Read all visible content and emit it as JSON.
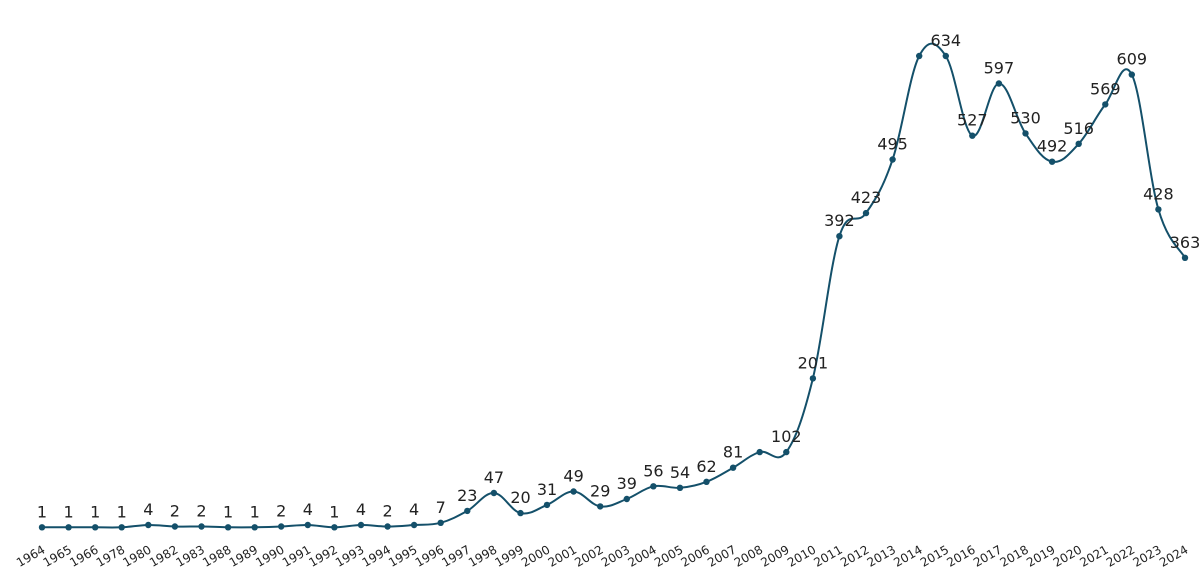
{
  "chart_data": {
    "type": "line",
    "categories": [
      "1964",
      "1965",
      "1966",
      "1978",
      "1980",
      "1982",
      "1983",
      "1988",
      "1989",
      "1990",
      "1991",
      "1992",
      "1993",
      "1994",
      "1995",
      "1996",
      "1997",
      "1998",
      "1999",
      "2000",
      "2001",
      "2002",
      "2003",
      "2004",
      "2005",
      "2006",
      "2007",
      "2008",
      "2009",
      "2010",
      "2011",
      "2012",
      "2013",
      "2014",
      "2015",
      "2016",
      "2017",
      "2018",
      "2019",
      "2020",
      "2021",
      "2022",
      "2023",
      "2024"
    ],
    "series": [
      {
        "values": [
          1,
          1,
          1,
          1,
          4,
          2,
          2,
          1,
          1,
          2,
          4,
          1,
          4,
          2,
          4,
          7,
          23,
          47,
          20,
          31,
          49,
          29,
          39,
          56,
          54,
          62,
          81,
          102,
          102,
          201,
          392,
          423,
          495,
          634,
          634,
          527,
          597,
          530,
          492,
          516,
          569,
          609,
          428,
          363
        ],
        "labels": [
          "1",
          "1",
          "1",
          "1",
          "4",
          "2",
          "2",
          "1",
          "1",
          "2",
          "4",
          "1",
          "4",
          "2",
          "4",
          "7",
          "23",
          "47",
          "20",
          "31",
          "49",
          "29",
          "39",
          "56",
          "54",
          "62",
          "81",
          "",
          "102",
          "201",
          "392",
          "423",
          "495",
          "",
          "634",
          "527",
          "597",
          "530",
          "492",
          "516",
          "569",
          "609",
          "428",
          "363"
        ]
      }
    ],
    "title": "",
    "xlabel": "",
    "ylabel": "",
    "ylim": [
      0,
      634
    ],
    "grid": false,
    "legend": "none",
    "line_color": "#14506a"
  }
}
